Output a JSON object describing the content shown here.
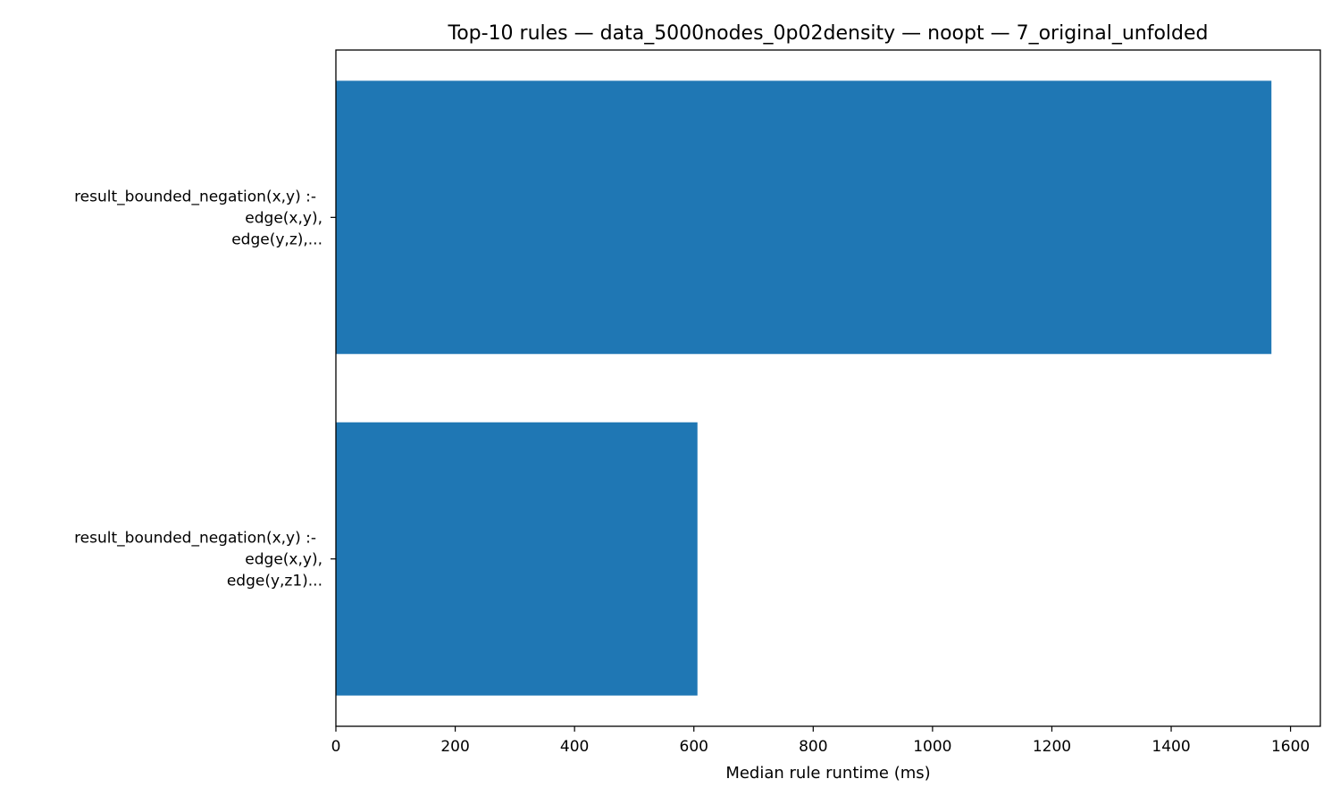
{
  "chart_data": {
    "type": "bar",
    "orientation": "horizontal",
    "title": "Top-10 rules — data_5000nodes_0p02density — noopt — 7_original_unfolded",
    "xlabel": "Median rule runtime (ms)",
    "ylabel": "",
    "xlim": [
      0,
      1650
    ],
    "x_ticks": [
      0,
      200,
      400,
      600,
      800,
      1000,
      1200,
      1400,
      1600
    ],
    "grid": false,
    "legend": "none",
    "bar_color": "#1f77b4",
    "categories": [
      [
        "result_bounded_negation(x,y) :-",
        "edge(x,y),",
        "edge(y,z),..."
      ],
      [
        "result_bounded_negation(x,y) :-",
        "edge(x,y),",
        "edge(y,z1)..."
      ]
    ],
    "values": [
      1568,
      606
    ]
  }
}
